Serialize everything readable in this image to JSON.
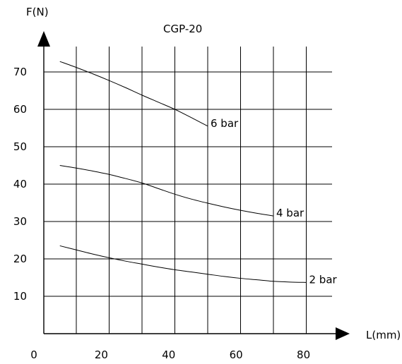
{
  "chart_data": {
    "type": "line",
    "title": "CGP-20",
    "xlabel": "L(mm)",
    "ylabel": "F(N)",
    "xlim": [
      -3,
      85
    ],
    "ylim": [
      0,
      75
    ],
    "x_ticks": [
      0,
      20,
      40,
      60,
      80
    ],
    "x_tick_labels": [
      "0",
      "20",
      "40",
      "60",
      "80"
    ],
    "y_ticks": [
      10,
      20,
      30,
      40,
      50,
      60,
      70
    ],
    "y_tick_labels": [
      "10",
      "20",
      "30",
      "40",
      "50",
      "60",
      "70"
    ],
    "grid": true,
    "grid_x": [
      10,
      20,
      30,
      40,
      50,
      60,
      70,
      80
    ],
    "grid_y": [
      10,
      20,
      30,
      40,
      50,
      60,
      70
    ],
    "series": [
      {
        "name": "6 bar",
        "x": [
          5,
          10,
          15,
          20,
          25,
          30,
          35,
          40,
          45,
          50
        ],
        "y": [
          72.8,
          71.2,
          69.5,
          67.7,
          65.8,
          63.8,
          61.9,
          60.0,
          57.8,
          55.5
        ]
      },
      {
        "name": "4 bar",
        "x": [
          5,
          10,
          15,
          20,
          25,
          30,
          35,
          40,
          45,
          50,
          55,
          60,
          65,
          70
        ],
        "y": [
          45.0,
          44.3,
          43.5,
          42.6,
          41.5,
          40.3,
          38.8,
          37.3,
          36.0,
          34.9,
          33.9,
          33.0,
          32.2,
          31.5
        ]
      },
      {
        "name": "2 bar",
        "x": [
          5,
          10,
          15,
          20,
          25,
          30,
          35,
          40,
          45,
          50,
          55,
          60,
          65,
          70,
          75,
          80
        ],
        "y": [
          23.5,
          22.4,
          21.3,
          20.3,
          19.4,
          18.6,
          17.8,
          17.1,
          16.5,
          15.9,
          15.3,
          14.8,
          14.4,
          14.0,
          13.8,
          13.7
        ]
      }
    ]
  }
}
